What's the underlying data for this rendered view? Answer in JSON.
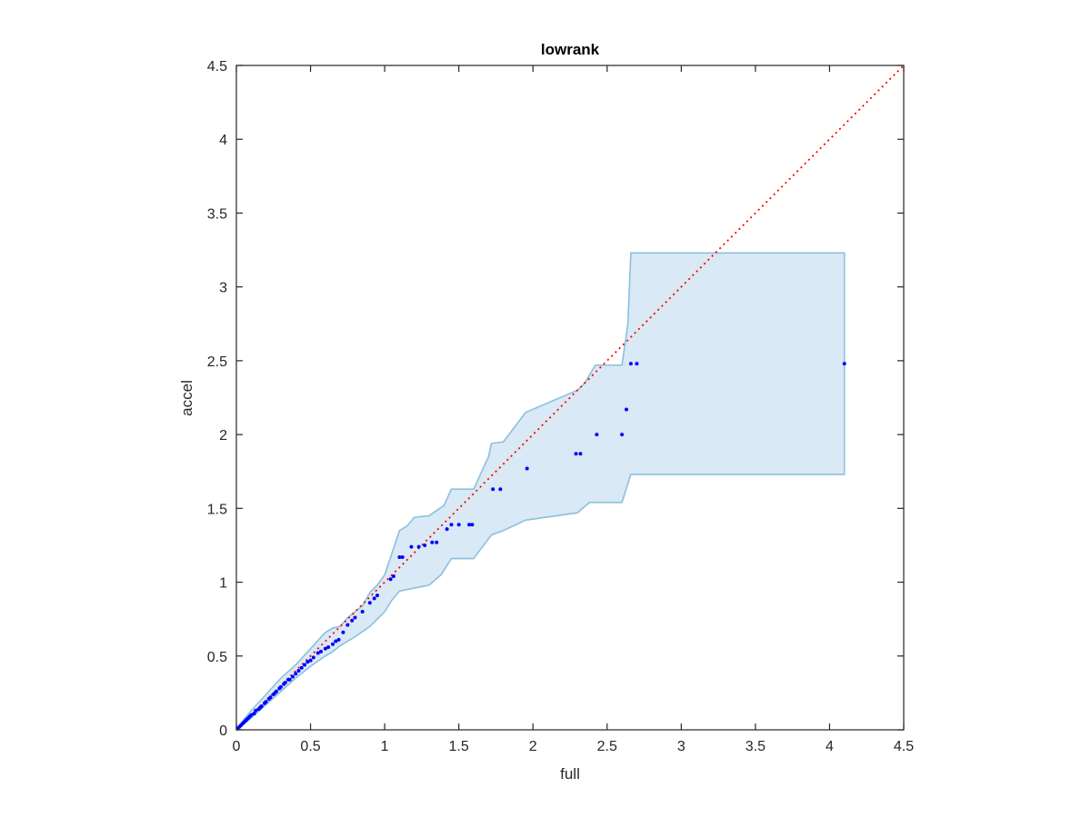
{
  "chart_data": {
    "type": "scatter",
    "title": "lowrank",
    "xlabel": "full",
    "ylabel": "accel",
    "xlim": [
      0,
      4.5
    ],
    "ylim": [
      0,
      4.5
    ],
    "xticks": [
      "0",
      "0.5",
      "1",
      "1.5",
      "2",
      "2.5",
      "3",
      "3.5",
      "4",
      "4.5"
    ],
    "yticks": [
      "0",
      "0.5",
      "1",
      "1.5",
      "2",
      "2.5",
      "3",
      "3.5",
      "4",
      "4.5"
    ],
    "grid": false,
    "colors": {
      "points": "#0000ff",
      "reference_line": "#ff0000",
      "band_fill": "#d9e9f5",
      "band_edge": "#8cc0de",
      "axes": "#262626"
    },
    "reference_line": {
      "style": "dotted",
      "from": [
        0,
        0
      ],
      "to": [
        4.5,
        4.5
      ]
    },
    "band": {
      "upper": [
        [
          0,
          0
        ],
        [
          0.05,
          0.07
        ],
        [
          0.1,
          0.13
        ],
        [
          0.2,
          0.24
        ],
        [
          0.3,
          0.35
        ],
        [
          0.4,
          0.44
        ],
        [
          0.5,
          0.55
        ],
        [
          0.6,
          0.66
        ],
        [
          0.65,
          0.69
        ],
        [
          0.7,
          0.7
        ],
        [
          0.75,
          0.76
        ],
        [
          0.8,
          0.8
        ],
        [
          0.85,
          0.84
        ],
        [
          0.9,
          0.93
        ],
        [
          0.95,
          0.98
        ],
        [
          1.0,
          1.05
        ],
        [
          1.05,
          1.2
        ],
        [
          1.1,
          1.35
        ],
        [
          1.15,
          1.38
        ],
        [
          1.2,
          1.44
        ],
        [
          1.3,
          1.45
        ],
        [
          1.4,
          1.52
        ],
        [
          1.45,
          1.63
        ],
        [
          1.6,
          1.63
        ],
        [
          1.7,
          1.85
        ],
        [
          1.72,
          1.94
        ],
        [
          1.8,
          1.95
        ],
        [
          1.95,
          2.15
        ],
        [
          2.3,
          2.3
        ],
        [
          2.35,
          2.35
        ],
        [
          2.42,
          2.47
        ],
        [
          2.6,
          2.47
        ],
        [
          2.64,
          2.75
        ],
        [
          2.66,
          3.23
        ],
        [
          4.1,
          3.23
        ]
      ],
      "lower": [
        [
          4.1,
          1.73
        ],
        [
          2.66,
          1.73
        ],
        [
          2.6,
          1.54
        ],
        [
          2.38,
          1.54
        ],
        [
          2.3,
          1.47
        ],
        [
          1.95,
          1.42
        ],
        [
          1.8,
          1.35
        ],
        [
          1.72,
          1.32
        ],
        [
          1.6,
          1.16
        ],
        [
          1.45,
          1.16
        ],
        [
          1.38,
          1.05
        ],
        [
          1.3,
          0.98
        ],
        [
          1.2,
          0.96
        ],
        [
          1.1,
          0.94
        ],
        [
          1.05,
          0.88
        ],
        [
          1.0,
          0.8
        ],
        [
          0.95,
          0.75
        ],
        [
          0.9,
          0.7
        ],
        [
          0.8,
          0.63
        ],
        [
          0.75,
          0.6
        ],
        [
          0.7,
          0.57
        ],
        [
          0.65,
          0.53
        ],
        [
          0.6,
          0.5
        ],
        [
          0.5,
          0.43
        ],
        [
          0.4,
          0.35
        ],
        [
          0.3,
          0.26
        ],
        [
          0.2,
          0.17
        ],
        [
          0.1,
          0.08
        ],
        [
          0.05,
          0.04
        ],
        [
          0,
          0
        ]
      ]
    },
    "points": [
      [
        0.01,
        0.01
      ],
      [
        0.02,
        0.02
      ],
      [
        0.03,
        0.03
      ],
      [
        0.04,
        0.04
      ],
      [
        0.05,
        0.05
      ],
      [
        0.06,
        0.06
      ],
      [
        0.07,
        0.07
      ],
      [
        0.08,
        0.08
      ],
      [
        0.09,
        0.09
      ],
      [
        0.1,
        0.1
      ],
      [
        0.12,
        0.11
      ],
      [
        0.13,
        0.13
      ],
      [
        0.15,
        0.14
      ],
      [
        0.16,
        0.15
      ],
      [
        0.17,
        0.16
      ],
      [
        0.19,
        0.18
      ],
      [
        0.2,
        0.19
      ],
      [
        0.22,
        0.21
      ],
      [
        0.23,
        0.22
      ],
      [
        0.25,
        0.24
      ],
      [
        0.26,
        0.25
      ],
      [
        0.27,
        0.26
      ],
      [
        0.29,
        0.28
      ],
      [
        0.3,
        0.29
      ],
      [
        0.32,
        0.31
      ],
      [
        0.33,
        0.32
      ],
      [
        0.35,
        0.34
      ],
      [
        0.36,
        0.34
      ],
      [
        0.38,
        0.36
      ],
      [
        0.4,
        0.38
      ],
      [
        0.42,
        0.4
      ],
      [
        0.44,
        0.42
      ],
      [
        0.46,
        0.44
      ],
      [
        0.48,
        0.46
      ],
      [
        0.5,
        0.47
      ],
      [
        0.52,
        0.49
      ],
      [
        0.55,
        0.52
      ],
      [
        0.57,
        0.53
      ],
      [
        0.6,
        0.55
      ],
      [
        0.62,
        0.56
      ],
      [
        0.65,
        0.58
      ],
      [
        0.67,
        0.6
      ],
      [
        0.69,
        0.61
      ],
      [
        0.72,
        0.66
      ],
      [
        0.75,
        0.71
      ],
      [
        0.78,
        0.74
      ],
      [
        0.8,
        0.76
      ],
      [
        0.85,
        0.8
      ],
      [
        0.9,
        0.86
      ],
      [
        0.93,
        0.89
      ],
      [
        0.95,
        0.91
      ],
      [
        1.04,
        1.02
      ],
      [
        1.06,
        1.04
      ],
      [
        1.1,
        1.17
      ],
      [
        1.12,
        1.17
      ],
      [
        1.18,
        1.24
      ],
      [
        1.23,
        1.24
      ],
      [
        1.27,
        1.25
      ],
      [
        1.32,
        1.27
      ],
      [
        1.35,
        1.27
      ],
      [
        1.42,
        1.36
      ],
      [
        1.45,
        1.39
      ],
      [
        1.5,
        1.39
      ],
      [
        1.57,
        1.39
      ],
      [
        1.59,
        1.39
      ],
      [
        1.73,
        1.63
      ],
      [
        1.78,
        1.63
      ],
      [
        1.96,
        1.77
      ],
      [
        2.29,
        1.87
      ],
      [
        2.32,
        1.87
      ],
      [
        2.43,
        2.0
      ],
      [
        2.6,
        2.0
      ],
      [
        2.63,
        2.17
      ],
      [
        2.66,
        2.48
      ],
      [
        2.7,
        2.48
      ],
      [
        4.1,
        2.48
      ]
    ]
  }
}
